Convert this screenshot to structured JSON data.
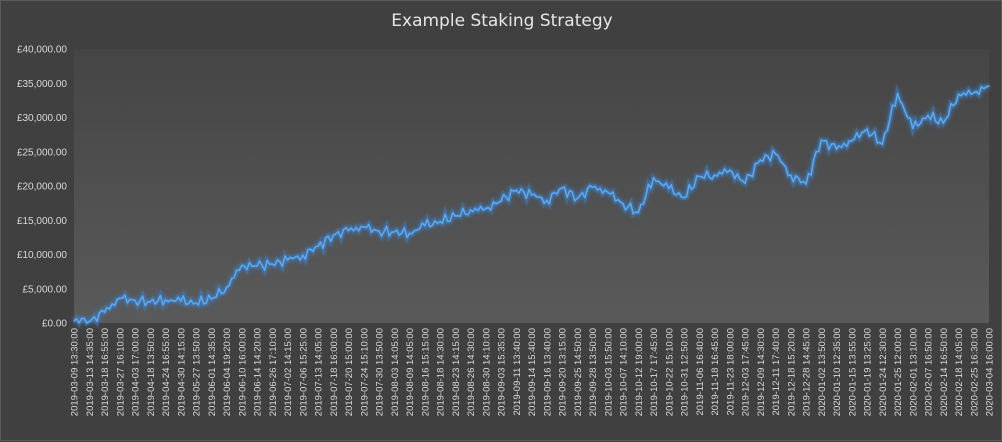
{
  "chart_data": {
    "type": "line",
    "title": "Example Staking Strategy",
    "xlabel": "",
    "ylabel": "",
    "ylim": [
      0,
      40000
    ],
    "y_ticks": [
      "£0.00",
      "£5,000.00",
      "£10,000.00",
      "£15,000.00",
      "£20,000.00",
      "£25,000.00",
      "£30,000.00",
      "£35,000.00",
      "£40,000.00"
    ],
    "x_ticks": [
      "2019-03-09 13:30:00",
      "2019-03-13 14:35:00",
      "2019-03-18 16:55:00",
      "2019-03-27 16:10:00",
      "2019-04-03 17:00:00",
      "2019-04-18 13:50:00",
      "2019-04-24 16:55:00",
      "2019-04-30 14:15:00",
      "2019-05-27 13:50:00",
      "2019-06-01 14:35:00",
      "2019-06-04 19:20:00",
      "2019-06-10 16:00:00",
      "2019-06-14 14:20:00",
      "2019-06-26 17:10:00",
      "2019-07-02 14:15:00",
      "2019-07-06 15:25:00",
      "2019-07-13 14:05:00",
      "2019-07-18 16:00:00",
      "2019-07-20 15:00:00",
      "2019-07-24 15:10:00",
      "2019-07-30 13:50:00",
      "2019-08-03 14:05:00",
      "2019-08-09 14:05:00",
      "2019-08-16 15:15:00",
      "2019-08-18 14:30:00",
      "2019-08-23 14:15:00",
      "2019-08-26 14:30:00",
      "2019-08-30 14:10:00",
      "2019-09-03 15:35:00",
      "2019-09-11 13:40:00",
      "2019-09-14 15:40:00",
      "2019-09-16 13:40:00",
      "2019-09-20 13:15:00",
      "2019-09-25 14:50:00",
      "2019-09-28 13:50:00",
      "2019-10-03 15:50:00",
      "2019-10-07 14:10:00",
      "2019-10-12 19:00:00",
      "2019-10-17 17:45:00",
      "2019-10-22 15:10:00",
      "2019-10-31 12:50:00",
      "2019-11-06 16:40:00",
      "2019-11-18 16:45:00",
      "2019-11-23 18:00:00",
      "2019-12-03 17:45:00",
      "2019-12-09 14:30:00",
      "2019-12-11 17:40:00",
      "2019-12-18 15:20:00",
      "2019-12-28 14:45:00",
      "2020-01-02 13:50:00",
      "2020-01-10 12:35:00",
      "2020-01-15 13:55:00",
      "2020-01-19 13:25:00",
      "2020-01-24 12:30:00",
      "2020-01-25 12:00:00",
      "2020-02-01 13:10:00",
      "2020-02-07 16:50:00",
      "2020-02-14 16:50:00",
      "2020-02-18 14:05:00",
      "2020-02-25 16:30:00",
      "2020-03-04 16:00:00"
    ],
    "series": [
      {
        "color": "#5aa8f0",
        "x": [
          0,
          1,
          2,
          3,
          4,
          5,
          6,
          7,
          8,
          9,
          10,
          11,
          12,
          13,
          14,
          15,
          16,
          17,
          18,
          19,
          20,
          21,
          22,
          23,
          24,
          25,
          26,
          27,
          28,
          29,
          30,
          31,
          32,
          33,
          34,
          35,
          36,
          37,
          38,
          39,
          40,
          41,
          42,
          43,
          44,
          45,
          46,
          47,
          48,
          49,
          50,
          51,
          52,
          53,
          54,
          55,
          56,
          57,
          58,
          59,
          60
        ],
        "values": [
          300,
          200,
          1600,
          3600,
          3300,
          3100,
          3400,
          3200,
          2900,
          3500,
          5200,
          8400,
          8300,
          8600,
          9200,
          9900,
          11200,
          12800,
          13500,
          14000,
          13400,
          13300,
          13100,
          14200,
          14800,
          15600,
          16500,
          16700,
          17800,
          19400,
          18700,
          17900,
          19700,
          18200,
          19800,
          19100,
          17400,
          16100,
          21200,
          19600,
          18300,
          21400,
          21600,
          22300,
          20400,
          23800,
          24700,
          21600,
          20300,
          26700,
          25400,
          26600,
          28300,
          26100,
          33500,
          28400,
          30300,
          29200,
          33400,
          33600,
          34600
        ]
      }
    ],
    "grid": "none",
    "legend": "none"
  }
}
